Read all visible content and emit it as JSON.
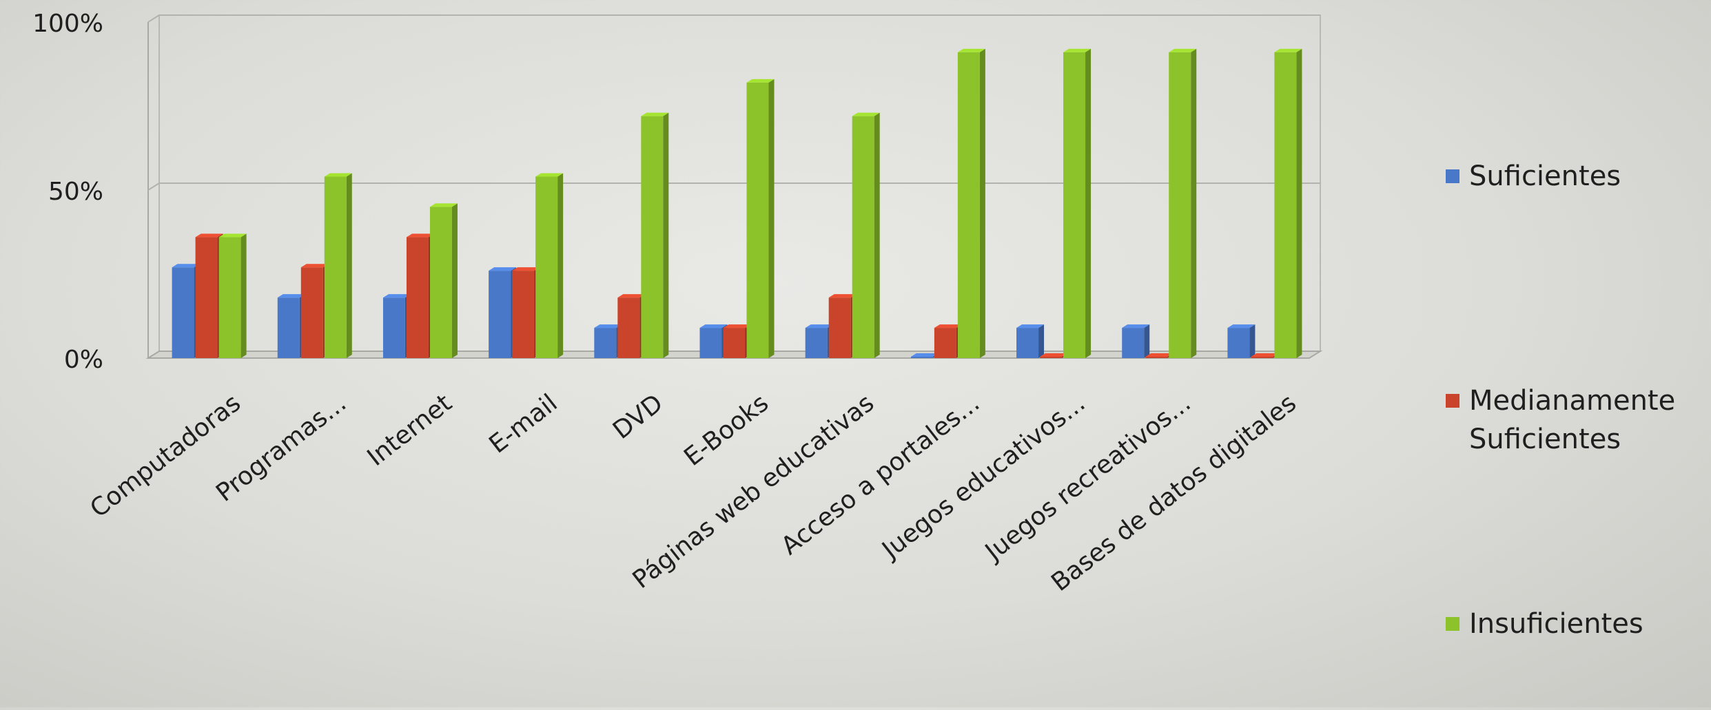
{
  "chart_data": {
    "type": "bar",
    "title": "",
    "xlabel": "",
    "ylabel": "",
    "ylim": [
      0,
      100
    ],
    "y_ticks": [
      "0%",
      "50%",
      "100%"
    ],
    "grid": true,
    "legend_position": "right",
    "categories": [
      "Computadoras",
      "Programas...",
      "Internet",
      "E-mail",
      "DVD",
      "E-Books",
      "Páginas web educativas",
      "Acceso a portales...",
      "Juegos educativos...",
      "Juegos recreativos...",
      "Bases de datos digitales"
    ],
    "series": [
      {
        "name": "Suficientes",
        "color": "#4a78c8",
        "values": [
          27,
          18,
          18,
          26,
          9,
          9,
          9,
          0,
          9,
          9,
          9
        ]
      },
      {
        "name": "Medianamente Suficientes",
        "color": "#c9442a",
        "values": [
          36,
          27,
          36,
          26,
          18,
          9,
          18,
          9,
          0,
          0,
          0
        ]
      },
      {
        "name": "Insuficientes",
        "color": "#8cc22a",
        "values": [
          36,
          54,
          45,
          54,
          72,
          82,
          72,
          91,
          91,
          91,
          91
        ]
      }
    ]
  }
}
